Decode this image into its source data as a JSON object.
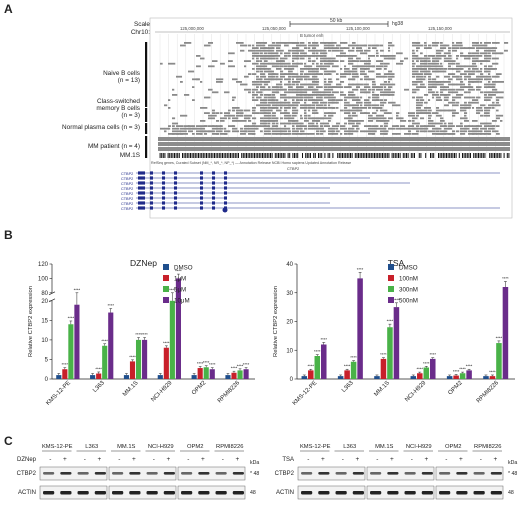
{
  "panel_a": {
    "letter": "A",
    "row_labels": {
      "scale": "Scale",
      "chr": "Chr10:",
      "naive_b_1": "Naive B cells",
      "naive_b_2": "(n = 13)",
      "class_switched_1": "Class-switched",
      "class_switched_2": "memory B cells",
      "class_switched_3": "(n = 3)",
      "plasma": "Normal plasma cells (n = 3)",
      "mm_patient": "MM patient (n = 4)",
      "mm1s": "MM.1S"
    },
    "scale_label": "50 kb",
    "genome_build": "hg38",
    "coords": [
      "125,000,000",
      "125,050,000",
      "125,100,000",
      "125,150,000"
    ],
    "track_caption": "RefSeq genes, Curated Subset (NM_*, NR_*, NP_*) — Annotation Release NCBI Homo sapiens Updated Annotation Release",
    "enhancer_label": "B tumor enh",
    "gene_label": "CTBP2",
    "genes": [
      "CTBP2",
      "CTBP2",
      "CTBP2",
      "CTBP2",
      "CTBP2",
      "CTBP2",
      "CTBP2",
      "CTBP2"
    ],
    "colors": {
      "track": "#888888",
      "dark": "#111111",
      "gene": "#1f2a8a"
    }
  },
  "panel_b": {
    "letter": "B",
    "ylabel": "Relative CTBP2 expression",
    "significance": "****",
    "chart_data": [
      {
        "type": "bar",
        "title": "DZNep",
        "categories": [
          "KMS-12-PE",
          "L363",
          "MM.1S",
          "NCI-H929",
          "OPM2",
          "RPMI8226"
        ],
        "series": [
          {
            "name": "DMSO",
            "color": "#1f4e8c",
            "values": [
              1,
              1,
              1,
              1,
              1,
              1
            ]
          },
          {
            "name": "1μM",
            "color": "#c8202a",
            "values": [
              2.5,
              1.4,
              4.5,
              8,
              2.8,
              1.6
            ]
          },
          {
            "name": "5μM",
            "color": "#49b248",
            "values": [
              14,
              8.5,
              10,
              20,
              3,
              2.2
            ]
          },
          {
            "name": "10μM",
            "color": "#6a2c8a",
            "values": [
              19,
              17,
              10,
              100,
              2.5,
              2.5
            ]
          }
        ],
        "yticks": [
          "0",
          "5",
          "10",
          "15",
          "20",
          "80",
          "100",
          "120"
        ],
        "ylim": [
          0,
          120
        ],
        "axis_break": [
          20,
          80
        ]
      },
      {
        "type": "bar",
        "title": "TSA",
        "categories": [
          "KMS-12-PE",
          "L363",
          "MM.1S",
          "NCI-H929",
          "OPM2",
          "RPMI8226"
        ],
        "series": [
          {
            "name": "DMSO",
            "color": "#1f4e8c",
            "values": [
              1,
              1,
              1,
              1,
              1,
              1
            ]
          },
          {
            "name": "100nM",
            "color": "#c8202a",
            "values": [
              3,
              3,
              7,
              2,
              1.2,
              1
            ]
          },
          {
            "name": "300nM",
            "color": "#49b248",
            "values": [
              8,
              6,
              18,
              4,
              2,
              12.5
            ]
          },
          {
            "name": "500nM",
            "color": "#6a2c8a",
            "values": [
              12,
              35,
              25,
              7,
              3,
              32
            ]
          }
        ],
        "yticks": [
          "0",
          "10",
          "20",
          "30",
          "40"
        ],
        "ylim": [
          0,
          40
        ]
      }
    ]
  },
  "panel_c": {
    "letter": "C",
    "lines": [
      "KMS-12-PE",
      "L363",
      "MM.1S",
      "NCI-H929",
      "OPM2",
      "RPMI8226"
    ],
    "left_treatment": "DZNep",
    "right_treatment": "TSA",
    "minus": "-",
    "plus": "+",
    "rows": [
      "CTBP2",
      "ACTIN"
    ],
    "kda": "kDa",
    "mw": "48",
    "star": "*"
  }
}
